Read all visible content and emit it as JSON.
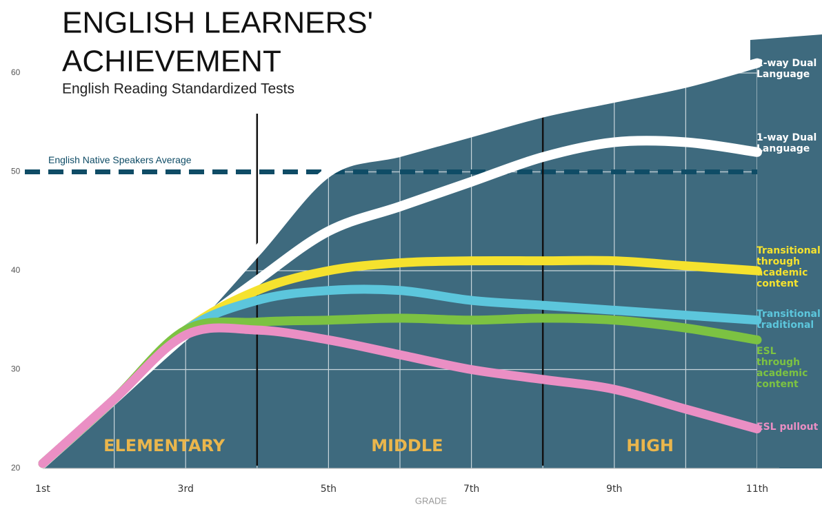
{
  "chart_data": {
    "type": "line",
    "title": "ENGLISH LEARNERS' ACHIEVEMENT",
    "subtitle": "English Reading Standardized Tests",
    "x_label": "GRADE",
    "x": [
      1,
      2,
      3,
      4,
      5,
      6,
      7,
      8,
      9,
      10,
      11
    ],
    "xlim": [
      1,
      11
    ],
    "xticks": [
      {
        "value": 1,
        "label": "1st"
      },
      {
        "value": 3,
        "label": "3rd"
      },
      {
        "value": 5,
        "label": "5th"
      },
      {
        "value": 7,
        "label": "7th"
      },
      {
        "value": 9,
        "label": "9th"
      },
      {
        "value": 11,
        "label": "11th"
      }
    ],
    "ylim": [
      20,
      60
    ],
    "yticks": [
      20,
      30,
      40,
      50,
      60
    ],
    "grid": true,
    "series": [
      {
        "name": "2-way Dual Language",
        "color": "#ffffff",
        "values": [
          20.5,
          27,
          34,
          42,
          50,
          52,
          54,
          56,
          57.5,
          59,
          61
        ]
      },
      {
        "name": "1-way Dual Language",
        "color": "#ffffff",
        "values": [
          20.5,
          27,
          33.5,
          39,
          44,
          46.5,
          49,
          51.5,
          53,
          53,
          52
        ]
      },
      {
        "name": "Transitional through academic content",
        "color": "#f5e22e",
        "values": [
          20.5,
          27,
          34,
          38,
          40,
          40.8,
          41,
          41,
          41,
          40.5,
          40
        ]
      },
      {
        "name": "Transitional traditional",
        "color": "#5cc6dc",
        "values": [
          20.5,
          27,
          34,
          37,
          38,
          38,
          37,
          36.5,
          36,
          35.5,
          35
        ]
      },
      {
        "name": "ESL through academic content",
        "color": "#7cc242",
        "values": [
          20.5,
          27,
          34,
          34.8,
          35,
          35.2,
          35,
          35.2,
          35,
          34.2,
          33
        ]
      },
      {
        "name": "ESL pullout",
        "color": "#ea8fc4",
        "values": [
          20.5,
          27,
          33.5,
          34,
          33,
          31.5,
          30,
          29,
          28,
          26,
          24
        ]
      }
    ],
    "reference_line": {
      "value": 50,
      "label": "English Native Speakers Average",
      "color": "#0f4c66"
    },
    "dividers": [
      4,
      8
    ],
    "regions": [
      {
        "label": "ELEMENTARY",
        "x": 2.7
      },
      {
        "label": "MIDDLE",
        "x": 6.1
      },
      {
        "label": "HIGH",
        "x": 9.5
      }
    ]
  }
}
